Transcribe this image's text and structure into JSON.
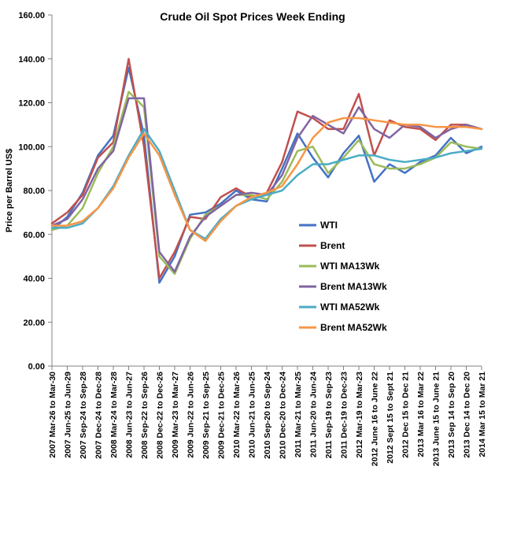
{
  "chart_data": {
    "type": "line",
    "title": "Crude Oil Spot Prices Week Ending",
    "xlabel": "",
    "ylabel": "Price per Barrel US$",
    "ylim": [
      0,
      160
    ],
    "y_ticks": [
      "0.00",
      "20.00",
      "40.00",
      "60.00",
      "80.00",
      "100.00",
      "120.00",
      "140.00",
      "160.00"
    ],
    "categories": [
      "2007 Mar-26 to Mar-30",
      "2007 Jun-25 to Jun-29",
      "2007 Sep-24 to Sep-28",
      "2007 Dec-24 to Dec-28",
      "2008 Mar-24 to Mar-28",
      "2008 Jun-23 to Jun-27",
      "2008 Sep-22 to Sep-26",
      "2008 Dec-22 to Dec-26",
      "2009 Mar-23 to Mar-27",
      "2009 Jun-22 to Jun-26",
      "2009 Sep-21 to Sep-25",
      "2009 Dec-21 to Dec-25",
      "2010 Mar-22 to Mar-26",
      "2010 Jun-21 to Jun-25",
      "2010 Sep-20 to Sep-24",
      "2010 Dec-20 to Dec-24",
      "2011 Mar-21 to Mar-25",
      "2011 Jun-20 to Jun-24",
      "2011 Sep-19 to Sep-23",
      "2011 Dec-19 to Dec-23",
      "2012 Mar-19 to Mar-23",
      "2012 June 16 to June 22",
      "2012 Sept 15 to Sept 21",
      "2012 Dec 15 to Dec 21",
      "2013 Mar 16 to Mar 22",
      "2013 June 15 to June 21",
      "2013 Sep 14 to Sep 20",
      "2013 Dec 14 to Dec 20",
      "2014 Mar 15 to Mar 21"
    ],
    "series": [
      {
        "name": "WTI",
        "color": "#4472C4",
        "values": [
          62,
          68,
          79,
          96,
          105,
          136,
          105,
          38,
          50,
          69,
          70,
          74,
          80,
          76,
          75,
          90,
          106,
          95,
          86,
          97,
          105,
          84,
          92,
          88,
          93,
          96,
          104,
          97,
          100
        ]
      },
      {
        "name": "Brent",
        "color": "#C0504D",
        "values": [
          65,
          70,
          78,
          95,
          102,
          140,
          100,
          40,
          52,
          68,
          67,
          77,
          81,
          77,
          79,
          93,
          116,
          113,
          108,
          108,
          124,
          96,
          112,
          109,
          108,
          103,
          110,
          110,
          108
        ]
      },
      {
        "name": "WTI MA13Wk",
        "color": "#9BBB59",
        "values": [
          62,
          64,
          72,
          88,
          100,
          125,
          118,
          50,
          42,
          58,
          69,
          73,
          78,
          78,
          76,
          84,
          98,
          100,
          88,
          95,
          103,
          92,
          90,
          90,
          92,
          95,
          102,
          100,
          99
        ]
      },
      {
        "name": "Brent MA13Wk",
        "color": "#8064A2",
        "values": [
          64,
          67,
          76,
          90,
          98,
          122,
          122,
          52,
          43,
          59,
          68,
          73,
          78,
          79,
          78,
          87,
          104,
          114,
          110,
          106,
          118,
          108,
          104,
          110,
          109,
          104,
          108,
          110,
          108
        ]
      },
      {
        "name": "WTI MA52Wk",
        "color": "#4BACC6",
        "values": [
          63,
          63,
          65,
          72,
          82,
          96,
          108,
          98,
          80,
          62,
          58,
          67,
          73,
          76,
          78,
          80,
          87,
          92,
          92,
          94,
          96,
          96,
          94,
          93,
          94,
          95,
          97,
          98,
          99
        ]
      },
      {
        "name": "Brent MA52Wk",
        "color": "#F79646",
        "values": [
          64,
          64,
          66,
          72,
          81,
          95,
          106,
          96,
          78,
          62,
          57,
          66,
          73,
          77,
          79,
          82,
          92,
          104,
          111,
          113,
          113,
          112,
          111,
          110,
          110,
          109,
          109,
          109,
          108
        ]
      }
    ],
    "legend_position": "right"
  }
}
